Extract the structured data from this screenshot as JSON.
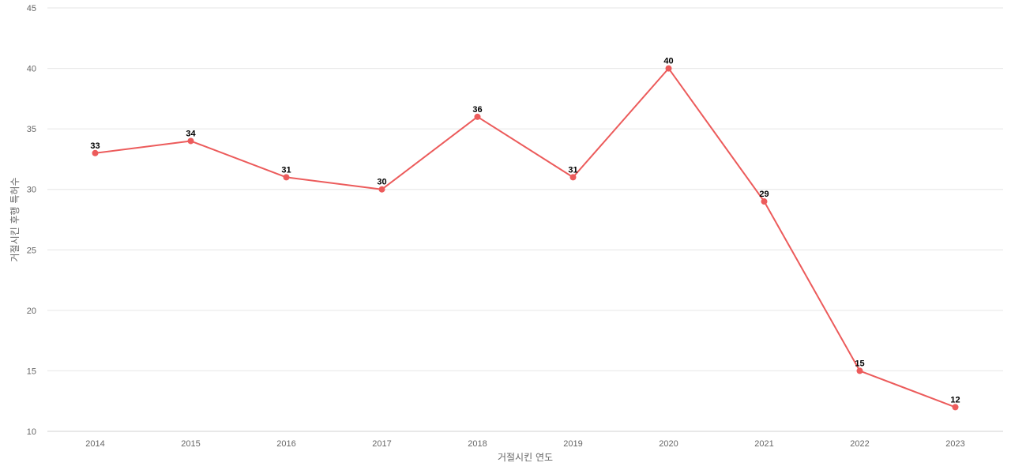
{
  "chart_data": {
    "type": "line",
    "x": [
      "2014",
      "2015",
      "2016",
      "2017",
      "2018",
      "2019",
      "2020",
      "2021",
      "2022",
      "2023"
    ],
    "series": [
      {
        "values": [
          33,
          34,
          31,
          30,
          36,
          31,
          40,
          29,
          15,
          12
        ]
      }
    ],
    "xlabel": "거절시킨 연도",
    "ylabel": "거절시킨 후행 특허수",
    "ylim": [
      10,
      45
    ],
    "yticks": [
      10,
      15,
      20,
      25,
      30,
      35,
      40,
      45
    ],
    "grid": true,
    "data_labels": true,
    "line_color": "#ec5b5b"
  }
}
